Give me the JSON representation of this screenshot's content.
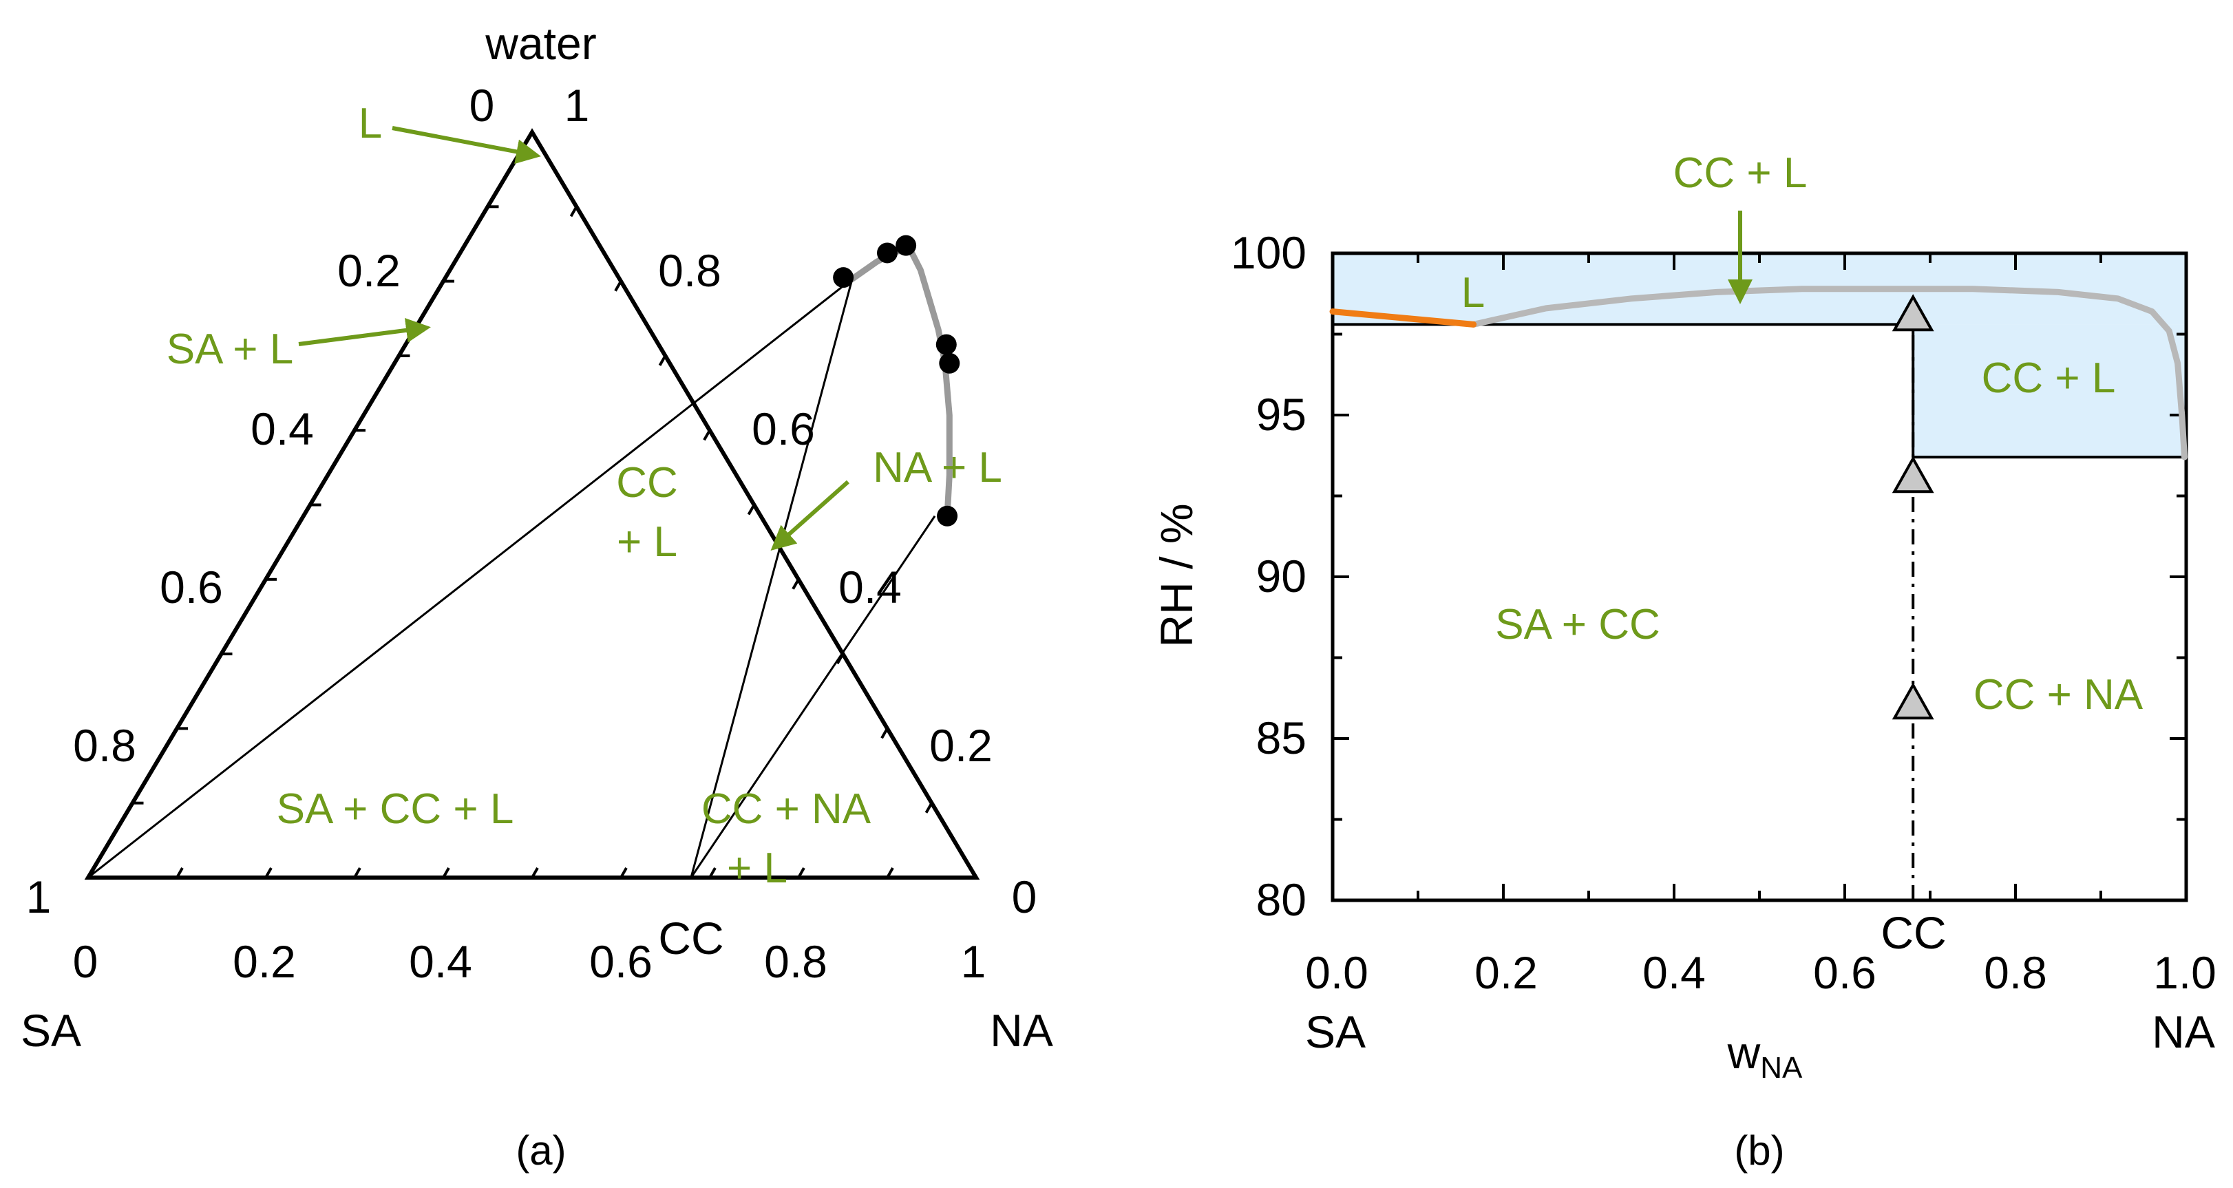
{
  "colors": {
    "annotation": "#6e9a1a",
    "liquid_region": "#dceffc",
    "liquidus_curve": "#b8b8b8",
    "orange_segment": "#f07c14",
    "marker_gray": "#c8c8c8"
  },
  "chart_data": [
    {
      "id": "a",
      "type": "ternary",
      "caption": "(a)",
      "vertex_labels": {
        "top": "water",
        "left": "SA",
        "right": "NA"
      },
      "axis_numbers": {
        "bottom": [
          "0",
          "0.2",
          "0.4",
          "0.6",
          "0.8",
          "1"
        ],
        "left": [
          "0",
          "0.2",
          "0.4",
          "0.6",
          "0.8",
          "1"
        ],
        "right": [
          "1",
          "0.8",
          "0.6",
          "0.4",
          "0.2",
          "0"
        ]
      },
      "compound_label": "CC",
      "compound_position_wNA": 0.679,
      "eutonic_points": [
        {
          "name": "SA+CC",
          "wNA": 0.459,
          "wWater": 0.803
        },
        {
          "name": "CC+NA",
          "wNA": 0.711,
          "wWater": 0.485
        }
      ],
      "data_points": [
        {
          "wNA": 0.448,
          "wWater": 0.805
        },
        {
          "wNA": 0.481,
          "wWater": 0.838
        },
        {
          "wNA": 0.497,
          "wWater": 0.848
        },
        {
          "wNA": 0.609,
          "wWater": 0.715
        },
        {
          "wNA": 0.625,
          "wWater": 0.69
        },
        {
          "wNA": 0.725,
          "wWater": 0.485
        }
      ],
      "liquidus_curve": [
        {
          "wNA": 0.459,
          "wWater": 0.803
        },
        {
          "wNA": 0.475,
          "wWater": 0.826
        },
        {
          "wNA": 0.49,
          "wWater": 0.84
        },
        {
          "wNA": 0.505,
          "wWater": 0.842
        },
        {
          "wNA": 0.53,
          "wWater": 0.815
        },
        {
          "wNA": 0.56,
          "wWater": 0.775
        },
        {
          "wNA": 0.59,
          "wWater": 0.735
        },
        {
          "wNA": 0.62,
          "wWater": 0.69
        },
        {
          "wNA": 0.66,
          "wWater": 0.62
        },
        {
          "wNA": 0.7,
          "wWater": 0.54
        },
        {
          "wNA": 0.725,
          "wWater": 0.485
        }
      ],
      "region_labels": {
        "l": "L",
        "sa_l": "SA + L",
        "cc_l_1": "CC",
        "cc_l_2": "+ L",
        "na_l": "NA + L",
        "sa_cc_l": "SA + CC + L",
        "cc_na_l_1": "CC + NA",
        "cc_na_l_2": "+ L"
      }
    },
    {
      "id": "b",
      "type": "phase_diagram",
      "caption": "(b)",
      "xlabel_main": "w",
      "xlabel_sub": "NA",
      "ylabel": "RH / %",
      "xlim": [
        0,
        1
      ],
      "ylim": [
        80,
        100
      ],
      "x_ticks": [
        "0.0",
        "0.2",
        "0.4",
        "0.6",
        "0.8",
        "1.0"
      ],
      "y_ticks": [
        "80",
        "85",
        "90",
        "95",
        "100"
      ],
      "end_labels": {
        "left": "SA",
        "right": "NA",
        "compound": "CC"
      },
      "compound_position_wNA": 0.68,
      "boundaries": [
        {
          "name": "SA+CC / SA+L",
          "rh": 97.8,
          "from": 0.0,
          "to": 0.68
        },
        {
          "name": "CC+NA / CC+L",
          "rh": 93.7,
          "from": 0.68,
          "to": 1.0
        }
      ],
      "liquidus_curve": [
        {
          "x": 0.165,
          "y": 97.8
        },
        {
          "x": 0.25,
          "y": 98.3
        },
        {
          "x": 0.35,
          "y": 98.6
        },
        {
          "x": 0.45,
          "y": 98.8
        },
        {
          "x": 0.55,
          "y": 98.9
        },
        {
          "x": 0.65,
          "y": 98.9
        },
        {
          "x": 0.75,
          "y": 98.9
        },
        {
          "x": 0.85,
          "y": 98.8
        },
        {
          "x": 0.92,
          "y": 98.6
        },
        {
          "x": 0.96,
          "y": 98.2
        },
        {
          "x": 0.98,
          "y": 97.6
        },
        {
          "x": 0.99,
          "y": 96.6
        },
        {
          "x": 0.995,
          "y": 95.0
        },
        {
          "x": 0.998,
          "y": 93.7
        }
      ],
      "orange_curve": [
        {
          "x": 0.0,
          "y": 98.2
        },
        {
          "x": 0.165,
          "y": 97.8
        }
      ],
      "triangle_markers": [
        {
          "x": 0.68,
          "y": 98.1
        },
        {
          "x": 0.68,
          "y": 93.1
        },
        {
          "x": 0.68,
          "y": 86.1
        }
      ],
      "region_labels": {
        "l": "L",
        "cc_l_top": "CC + L",
        "cc_l_right": "CC + L",
        "sa_cc": "SA + CC",
        "cc_na": "CC + NA"
      }
    }
  ]
}
